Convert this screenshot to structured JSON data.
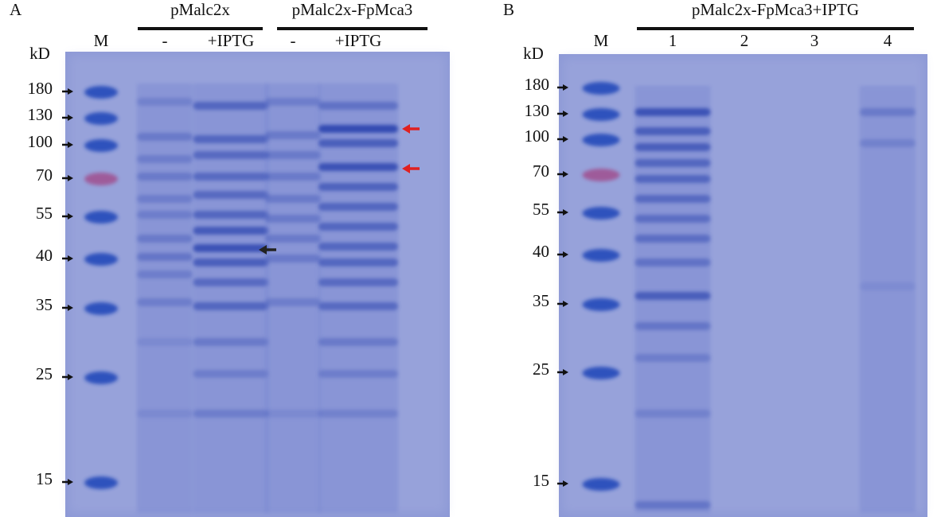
{
  "panels": [
    {
      "label": "A",
      "groups": [
        {
          "label": "pMalc2x"
        },
        {
          "label": "pMalc2x-FpMca3"
        }
      ],
      "lanes": [
        "M",
        "-",
        "+IPTG",
        "-",
        "+IPTG"
      ],
      "unit": "kD",
      "markers": [
        "180",
        "130",
        "100",
        "70",
        "55",
        "40",
        "35",
        "25",
        "15"
      ]
    },
    {
      "label": "B",
      "groups": [
        {
          "label": "pMalc2x-FpMca3+IPTG"
        }
      ],
      "lanes": [
        "M",
        "1",
        "2",
        "3",
        "4"
      ],
      "unit": "kD",
      "markers": [
        "180",
        "130",
        "100",
        "70",
        "55",
        "40",
        "35",
        "25",
        "15"
      ]
    }
  ]
}
